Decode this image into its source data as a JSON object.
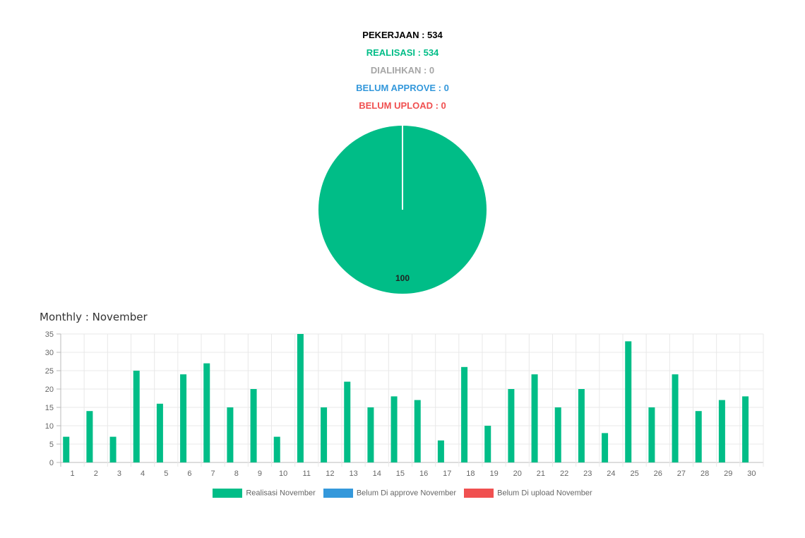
{
  "summary": {
    "pekerjaan": "PEKERJAAN : 534",
    "realisasi": "REALISASI : 534",
    "dialihkan": "DIALIHKAN : 0",
    "belum_approve": "BELUM APPROVE : 0",
    "belum_upload": "BELUM UPLOAD : 0"
  },
  "colors": {
    "realisasi": "#00bd87",
    "dialihkan": "#a6a6a6",
    "belum_approve": "#3498db",
    "belum_upload": "#f05050",
    "pekerjaan": "#000000"
  },
  "monthly": {
    "title": "Monthly : November"
  },
  "chart_data": [
    {
      "type": "pie",
      "slices": [
        {
          "label": "Realisasi",
          "value": 100,
          "color": "#00bd87"
        },
        {
          "label": "Belum Di approve",
          "value": 0,
          "color": "#3498db"
        },
        {
          "label": "Belum Di upload",
          "value": 0,
          "color": "#f05050"
        }
      ],
      "data_labels": [
        "100"
      ]
    },
    {
      "type": "bar",
      "categories": [
        "1",
        "2",
        "3",
        "4",
        "5",
        "6",
        "7",
        "8",
        "9",
        "10",
        "11",
        "12",
        "13",
        "14",
        "15",
        "16",
        "17",
        "18",
        "19",
        "20",
        "21",
        "22",
        "23",
        "24",
        "25",
        "26",
        "27",
        "28",
        "29",
        "30"
      ],
      "series": [
        {
          "name": "Realisasi November",
          "color": "#00bd87",
          "values": [
            7,
            14,
            7,
            25,
            16,
            24,
            27,
            15,
            20,
            7,
            35,
            15,
            22,
            15,
            18,
            17,
            6,
            26,
            10,
            20,
            24,
            15,
            20,
            8,
            33,
            15,
            24,
            14,
            17,
            18
          ]
        },
        {
          "name": "Belum Di approve November",
          "color": "#3498db",
          "values": [
            0,
            0,
            0,
            0,
            0,
            0,
            0,
            0,
            0,
            0,
            0,
            0,
            0,
            0,
            0,
            0,
            0,
            0,
            0,
            0,
            0,
            0,
            0,
            0,
            0,
            0,
            0,
            0,
            0,
            0
          ]
        },
        {
          "name": "Belum Di upload November",
          "color": "#f05050",
          "values": [
            0,
            0,
            0,
            0,
            0,
            0,
            0,
            0,
            0,
            0,
            0,
            0,
            0,
            0,
            0,
            0,
            0,
            0,
            0,
            0,
            0,
            0,
            0,
            0,
            0,
            0,
            0,
            0,
            0,
            0
          ]
        }
      ],
      "ylim": [
        0,
        35
      ],
      "yticks": [
        "0",
        "5",
        "10",
        "15",
        "20",
        "25",
        "30",
        "35"
      ],
      "grid": true,
      "legend": "bottom"
    }
  ]
}
